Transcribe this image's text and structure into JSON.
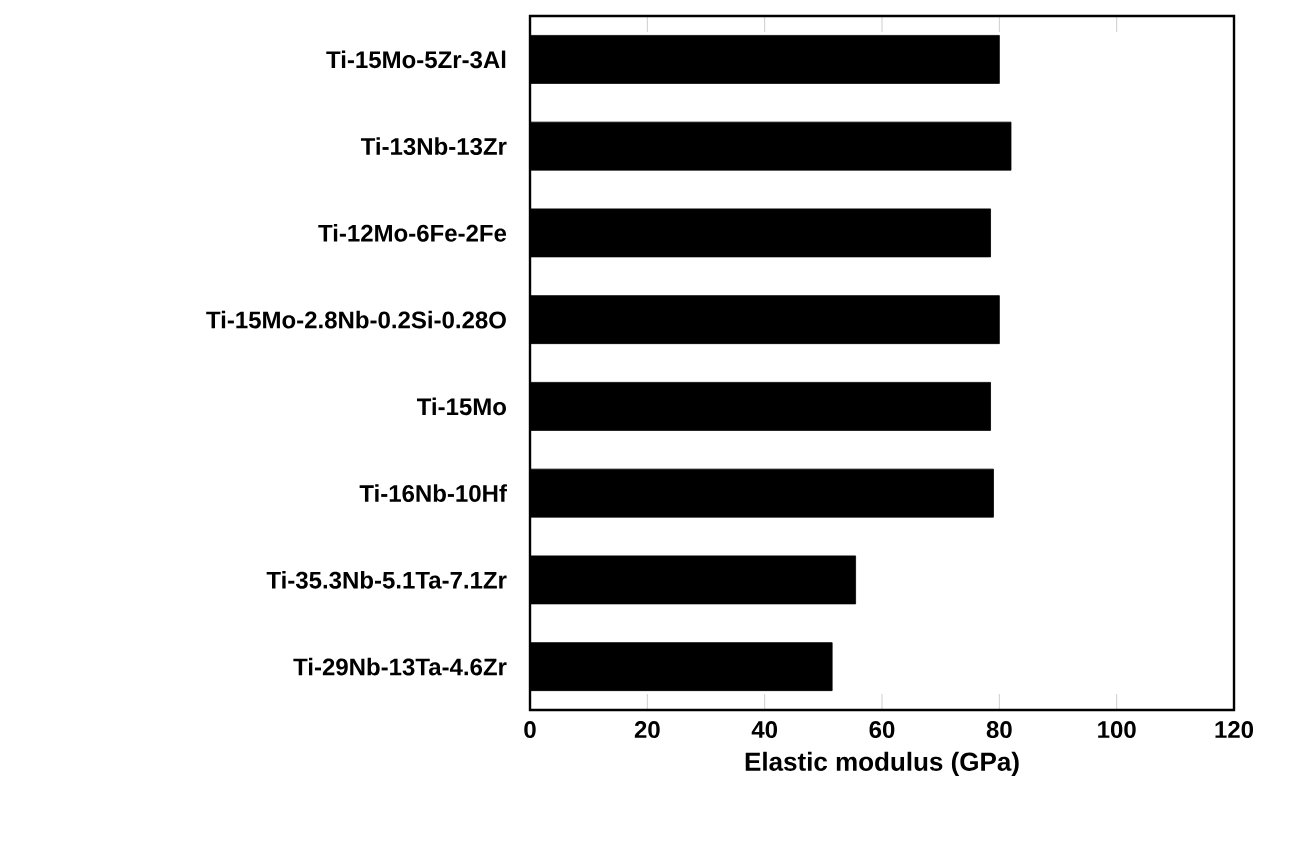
{
  "chart_data": {
    "type": "bar",
    "orientation": "horizontal",
    "xlabel": "Elastic modulus (GPa)",
    "categories": [
      "Ti-15Mo-5Zr-3Al",
      "Ti-13Nb-13Zr",
      "Ti-12Mo-6Fe-2Fe",
      "Ti-15Mo-2.8Nb-0.2Si-0.28O",
      "Ti-15Mo",
      "Ti-16Nb-10Hf",
      "Ti-35.3Nb-5.1Ta-7.1Zr",
      "Ti-29Nb-13Ta-4.6Zr"
    ],
    "values": [
      80,
      82,
      78.5,
      80,
      78.5,
      79,
      55.5,
      51.5
    ],
    "color": "#000000",
    "xlim": [
      0,
      120
    ],
    "xticks": [
      0,
      20,
      40,
      60,
      80,
      100,
      120
    ],
    "grid": false
  }
}
